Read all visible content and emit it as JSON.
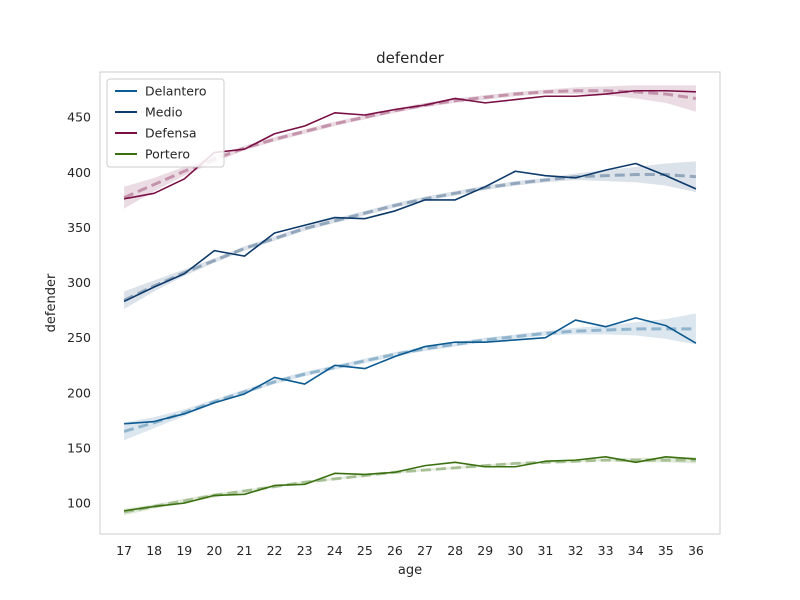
{
  "chart_data": {
    "type": "line",
    "title": "defender",
    "xlabel": "age",
    "ylabel": "defender",
    "x": [
      17,
      18,
      19,
      20,
      21,
      22,
      23,
      24,
      25,
      26,
      27,
      28,
      29,
      30,
      31,
      32,
      33,
      34,
      35,
      36
    ],
    "xlim": [
      16.2,
      36.8
    ],
    "ylim": [
      72,
      491
    ],
    "yticks": [
      100,
      150,
      200,
      250,
      300,
      350,
      400,
      450
    ],
    "grid": false,
    "legend_position": "top-left",
    "series": [
      {
        "name": "Delantero",
        "color": "#0b5a91",
        "values": [
          172,
          174,
          181,
          191,
          199,
          214,
          208,
          225,
          222,
          233,
          242,
          246,
          246,
          248,
          250,
          266,
          260,
          268,
          261,
          245
        ],
        "fit": [
          165,
          173,
          182,
          192,
          201,
          210,
          217,
          223,
          229,
          235,
          240,
          244,
          248,
          251,
          254,
          256,
          257,
          258,
          258,
          258
        ],
        "band": [
          8,
          5,
          3,
          2,
          2,
          2,
          2,
          2,
          2,
          2,
          2,
          2,
          2,
          2,
          2,
          3,
          4,
          6,
          9,
          14
        ]
      },
      {
        "name": "Medio",
        "color": "#0d3a6a",
        "values": [
          283,
          296,
          308,
          329,
          324,
          345,
          352,
          359,
          358,
          365,
          375,
          375,
          387,
          401,
          397,
          395,
          402,
          408,
          397,
          385
        ],
        "fit": [
          284,
          297,
          309,
          320,
          331,
          340,
          349,
          356,
          363,
          370,
          376,
          381,
          386,
          390,
          393,
          396,
          397,
          398,
          398,
          396
        ],
        "band": [
          8,
          5,
          3,
          2,
          2,
          2,
          2,
          2,
          2,
          2,
          2,
          2,
          2,
          2,
          2,
          3,
          5,
          7,
          10,
          14
        ]
      },
      {
        "name": "Defensa",
        "color": "#7a0f45",
        "values": [
          376,
          381,
          394,
          418,
          421,
          435,
          442,
          454,
          452,
          457,
          461,
          467,
          463,
          466,
          469,
          469,
          471,
          474,
          474,
          473
        ],
        "fit": [
          377,
          389,
          401,
          412,
          422,
          430,
          437,
          444,
          450,
          456,
          461,
          465,
          468,
          471,
          473,
          474,
          474,
          473,
          471,
          467
        ],
        "band": [
          10,
          6,
          4,
          3,
          2,
          2,
          2,
          2,
          2,
          2,
          2,
          2,
          2,
          2,
          2,
          3,
          4,
          6,
          8,
          12
        ]
      },
      {
        "name": "Portero",
        "color": "#3a7010",
        "values": [
          93,
          97,
          100,
          107,
          108,
          116,
          117,
          127,
          126,
          128,
          134,
          137,
          133,
          133,
          138,
          139,
          142,
          137,
          142,
          140
        ],
        "fit": [
          92,
          97,
          102,
          107,
          111,
          115,
          119,
          122,
          125,
          128,
          130,
          132,
          134,
          136,
          137,
          138,
          139,
          139,
          139,
          139
        ],
        "band": [
          3,
          2,
          2,
          2,
          1,
          1,
          1,
          1,
          1,
          1,
          1,
          1,
          1,
          1,
          1,
          1,
          1,
          2,
          2,
          3
        ]
      }
    ]
  }
}
